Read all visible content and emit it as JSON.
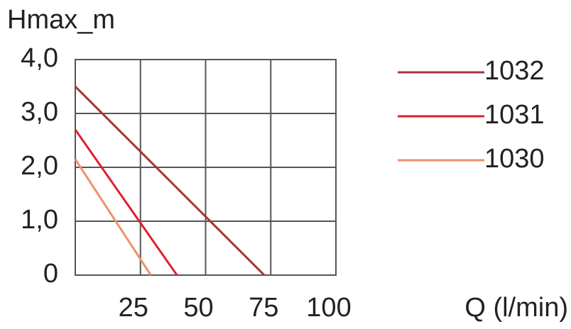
{
  "chart_data": {
    "type": "line",
    "title": "Hmax_m",
    "x_label": "Q (l/min)",
    "xlim": [
      0,
      100
    ],
    "xticks": [
      25,
      50,
      75,
      100
    ],
    "ylim": [
      0,
      4
    ],
    "yticks": [
      0,
      {
        "value": 1,
        "label": "1,0"
      },
      {
        "value": 2,
        "label": "2,0"
      },
      {
        "value": 3,
        "label": "3,0"
      },
      {
        "value": 4,
        "label": "4,0"
      }
    ],
    "grid": true,
    "legend": "right",
    "series": [
      {
        "name": "1032",
        "color": "#a83434",
        "x": [
          0,
          72.5
        ],
        "values": [
          3.5,
          0
        ]
      },
      {
        "name": "1031",
        "color": "#e0202c",
        "x": [
          0,
          39
        ],
        "values": [
          2.7,
          0
        ]
      },
      {
        "name": "1030",
        "color": "#f0906c",
        "x": [
          0,
          29
        ],
        "values": [
          2.15,
          0
        ]
      }
    ]
  }
}
